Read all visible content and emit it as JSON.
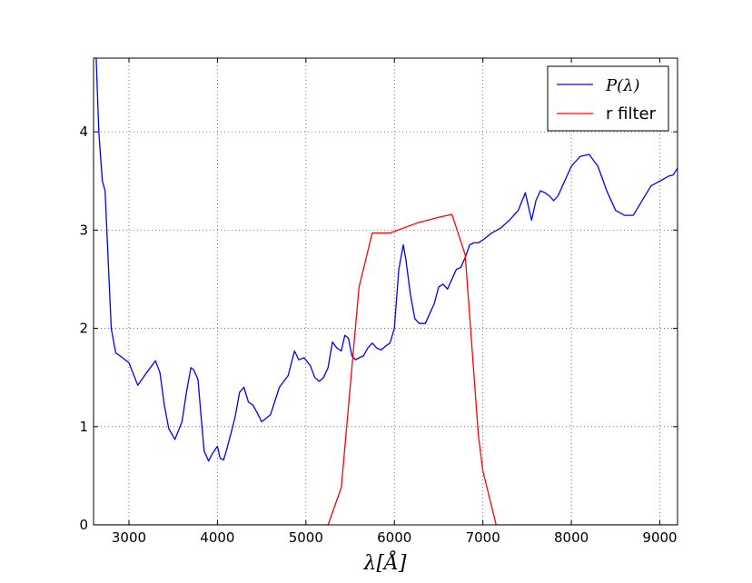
{
  "chart_data": {
    "type": "line",
    "title": "",
    "xlabel": "λ[Å]",
    "ylabel": "",
    "xlim": [
      2600,
      9200
    ],
    "ylim": [
      0,
      4.75
    ],
    "grid": true,
    "legend_position": "top-right",
    "x_ticks": [
      3000,
      4000,
      5000,
      6000,
      7000,
      8000,
      9000
    ],
    "x_tick_labels": [
      "3000",
      "4000",
      "5000",
      "6000",
      "7000",
      "8000",
      "9000"
    ],
    "y_ticks": [
      0,
      1,
      2,
      3,
      4
    ],
    "y_tick_labels": [
      "0",
      "1",
      "2",
      "3",
      "4"
    ],
    "series": [
      {
        "name": "P(λ)",
        "color": "#0000ff",
        "x": [
          2630,
          2660,
          2700,
          2730,
          2760,
          2800,
          2850,
          2900,
          3000,
          3100,
          3200,
          3300,
          3350,
          3400,
          3450,
          3520,
          3600,
          3650,
          3700,
          3730,
          3780,
          3820,
          3850,
          3900,
          3940,
          4000,
          4030,
          4070,
          4100,
          4150,
          4200,
          4250,
          4300,
          4350,
          4400,
          4450,
          4500,
          4600,
          4700,
          4800,
          4870,
          4920,
          4980,
          5050,
          5100,
          5150,
          5200,
          5250,
          5300,
          5350,
          5400,
          5440,
          5480,
          5520,
          5560,
          5600,
          5650,
          5700,
          5750,
          5800,
          5850,
          5900,
          5950,
          6000,
          6050,
          6100,
          6130,
          6180,
          6230,
          6280,
          6350,
          6400,
          6450,
          6500,
          6550,
          6600,
          6650,
          6700,
          6750,
          6800,
          6850,
          6900,
          6950,
          7000,
          7100,
          7200,
          7300,
          7400,
          7480,
          7550,
          7600,
          7650,
          7700,
          7750,
          7800,
          7850,
          7900,
          7950,
          8000,
          8100,
          8200,
          8300,
          8400,
          8500,
          8600,
          8700,
          8800,
          8900,
          9000,
          9100,
          9150,
          9200
        ],
        "y": [
          4.75,
          4.0,
          3.5,
          3.4,
          2.8,
          2.0,
          1.75,
          1.72,
          1.65,
          1.42,
          1.55,
          1.67,
          1.55,
          1.22,
          0.98,
          0.87,
          1.05,
          1.35,
          1.6,
          1.58,
          1.48,
          1.05,
          0.75,
          0.65,
          0.72,
          0.8,
          0.68,
          0.66,
          0.75,
          0.92,
          1.1,
          1.35,
          1.4,
          1.25,
          1.22,
          1.14,
          1.05,
          1.12,
          1.4,
          1.52,
          1.77,
          1.68,
          1.7,
          1.62,
          1.5,
          1.46,
          1.5,
          1.6,
          1.86,
          1.8,
          1.77,
          1.93,
          1.9,
          1.72,
          1.68,
          1.7,
          1.72,
          1.8,
          1.85,
          1.8,
          1.78,
          1.82,
          1.85,
          2.0,
          2.6,
          2.85,
          2.7,
          2.35,
          2.1,
          2.05,
          2.05,
          2.15,
          2.25,
          2.42,
          2.45,
          2.4,
          2.5,
          2.6,
          2.62,
          2.72,
          2.85,
          2.87,
          2.87,
          2.9,
          2.97,
          3.02,
          3.1,
          3.2,
          3.38,
          3.1,
          3.3,
          3.4,
          3.38,
          3.35,
          3.3,
          3.35,
          3.45,
          3.55,
          3.65,
          3.75,
          3.77,
          3.65,
          3.4,
          3.2,
          3.15,
          3.15,
          3.3,
          3.45,
          3.5,
          3.55,
          3.56,
          3.63
        ]
      },
      {
        "name": "r filter",
        "color": "#ff0000",
        "x": [
          2600,
          5250,
          5400,
          5600,
          5750,
          5950,
          6250,
          6500,
          6650,
          6800,
          6950,
          7000,
          7150,
          9200
        ],
        "y": [
          0,
          0,
          0.38,
          2.42,
          2.97,
          2.97,
          3.07,
          3.13,
          3.16,
          2.75,
          0.9,
          0.55,
          0,
          0
        ]
      }
    ]
  }
}
